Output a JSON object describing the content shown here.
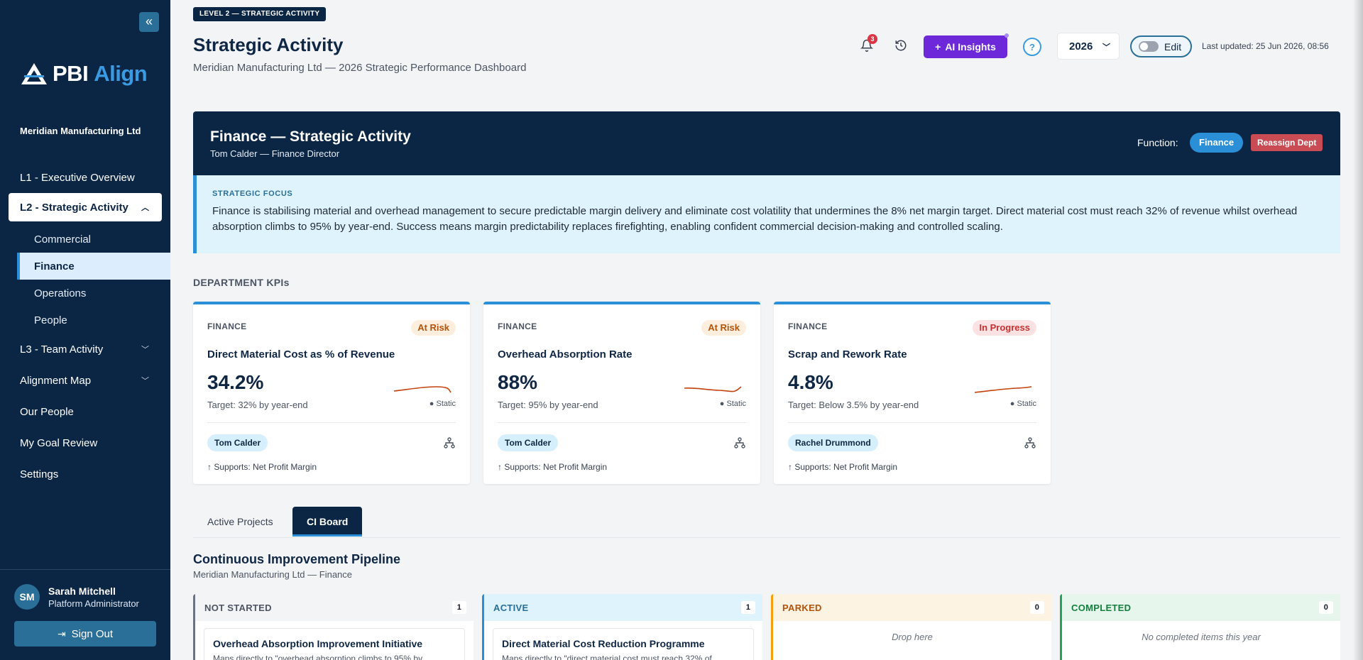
{
  "sidebar": {
    "brand_a": "PBI",
    "brand_b": "Align",
    "org": "Meridian Manufacturing Ltd",
    "nav": {
      "l1": "L1 - Executive Overview",
      "l2": "L2 - Strategic Activity",
      "l2_sub": [
        "Commercial",
        "Finance",
        "Operations",
        "People"
      ],
      "l3": "L3 - Team Activity",
      "alignment": "Alignment Map",
      "people": "Our People",
      "goal_review": "My Goal Review",
      "settings": "Settings"
    },
    "user": {
      "initials": "SM",
      "name": "Sarah Mitchell",
      "role": "Platform Administrator",
      "signout": "Sign Out"
    }
  },
  "header": {
    "level_badge": "LEVEL 2 — STRATEGIC ACTIVITY",
    "title": "Strategic Activity",
    "subtitle": "Meridian Manufacturing Ltd — 2026 Strategic Performance Dashboard",
    "notif_count": "3",
    "ai_label": "AI Insights",
    "help": "?",
    "year": "2026",
    "edit_label": "Edit",
    "last_updated": "Last updated: 25 Jun 2026, 08:56"
  },
  "department": {
    "title": "Finance — Strategic Activity",
    "lead": "Tom Calder — Finance Director",
    "function_label": "Function:",
    "function": "Finance",
    "reassign": "Reassign Dept",
    "focus_label": "STRATEGIC FOCUS",
    "focus_text": "Finance is stabilising material and overhead management to secure predictable margin delivery and eliminate cost volatility that undermines the 8% net margin target. Direct material cost must reach 32% of revenue whilst overhead absorption climbs to 95% by year-end. Success means margin predictability replaces firefighting, enabling confident commercial decision-making and controlled scaling."
  },
  "kpis": {
    "section": "DEPARTMENT KPIs",
    "items": [
      {
        "func": "FINANCE",
        "status": "At Risk",
        "name": "Direct Material Cost as % of Revenue",
        "value": "34.2%",
        "target": "Target: 32% by year-end",
        "trend": "Static",
        "owner": "Tom Calder",
        "supports": "↑ Supports: Net Profit Margin"
      },
      {
        "func": "FINANCE",
        "status": "At Risk",
        "name": "Overhead Absorption Rate",
        "value": "88%",
        "target": "Target: 95% by year-end",
        "trend": "Static",
        "owner": "Tom Calder",
        "supports": "↑ Supports: Net Profit Margin"
      },
      {
        "func": "FINANCE",
        "status": "In Progress",
        "name": "Scrap and Rework Rate",
        "value": "4.8%",
        "target": "Target: Below 3.5% by year-end",
        "trend": "Static",
        "owner": "Rachel Drummond",
        "supports": "↑ Supports: Net Profit Margin"
      }
    ]
  },
  "tabs": [
    "Active Projects",
    "CI Board"
  ],
  "pipeline": {
    "title": "Continuous Improvement Pipeline",
    "subtitle": "Meridian Manufacturing Ltd — Finance",
    "columns": [
      {
        "name": "NOT STARTED",
        "count": "1",
        "card_title": "Overhead Absorption Improvement Initiative",
        "card_desc": "Maps directly to \"overhead absorption climbs to 95% by"
      },
      {
        "name": "ACTIVE",
        "count": "1",
        "card_title": "Direct Material Cost Reduction Programme",
        "card_desc": "Maps directly to \"direct material cost must reach 32% of"
      },
      {
        "name": "PARKED",
        "count": "0",
        "empty": "Drop here"
      },
      {
        "name": "COMPLETED",
        "count": "0",
        "empty": "No completed items this year"
      }
    ]
  },
  "colors": {
    "navy": "#0b2545",
    "accent": "#2a8fd6",
    "ai_purple": "#6d28d9",
    "at_risk": "#b45309",
    "in_progress": "#c53030",
    "spark": "#c2410c"
  }
}
